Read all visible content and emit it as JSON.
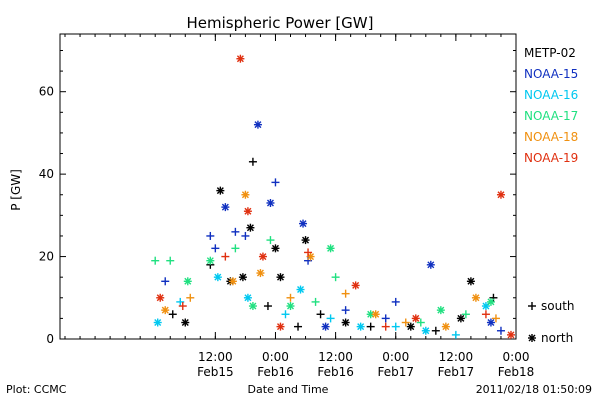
{
  "chart_data": {
    "type": "scatter",
    "title": "Hemispheric Power [GW]",
    "ylabel": "P [GW]",
    "xlabel": "Date and Time",
    "ylim": [
      0,
      74
    ],
    "yticks": [
      0,
      20,
      40,
      60
    ],
    "xlim": [
      "2011-02-14 05:00",
      "2011-02-18 00:00"
    ],
    "xticks": [
      {
        "x": "2011-02-15 12:00",
        "time": "12:00",
        "date": "Feb15"
      },
      {
        "x": "2011-02-16 00:00",
        "time": "0:00",
        "date": "Feb16"
      },
      {
        "x": "2011-02-16 12:00",
        "time": "12:00",
        "date": "Feb16"
      },
      {
        "x": "2011-02-17 00:00",
        "time": "0:00",
        "date": "Feb17"
      },
      {
        "x": "2011-02-17 12:00",
        "time": "12:00",
        "date": "Feb17"
      },
      {
        "x": "2011-02-18 00:00",
        "time": "0:00",
        "date": "Feb18"
      }
    ],
    "legend_position": "right",
    "series": [
      {
        "name": "METP-02",
        "color": "#000000",
        "points": [
          [
            "2011-02-15 03:30",
            6,
            "S"
          ],
          [
            "2011-02-15 06:00",
            4,
            "N"
          ],
          [
            "2011-02-15 11:00",
            18,
            "S"
          ],
          [
            "2011-02-15 13:00",
            36,
            "N"
          ],
          [
            "2011-02-15 15:00",
            14,
            "N"
          ],
          [
            "2011-02-15 17:30",
            15,
            "N"
          ],
          [
            "2011-02-15 19:30",
            43,
            "S"
          ],
          [
            "2011-02-15 19:00",
            27,
            "N"
          ],
          [
            "2011-02-15 22:30",
            8,
            "S"
          ],
          [
            "2011-02-16 00:00",
            22,
            "N"
          ],
          [
            "2011-02-16 01:00",
            15,
            "N"
          ],
          [
            "2011-02-16 04:30",
            3,
            "S"
          ],
          [
            "2011-02-16 06:00",
            24,
            "N"
          ],
          [
            "2011-02-16 09:00",
            6,
            "S"
          ],
          [
            "2011-02-16 14:00",
            4,
            "N"
          ],
          [
            "2011-02-16 19:00",
            3,
            "S"
          ],
          [
            "2011-02-17 03:00",
            3,
            "N"
          ],
          [
            "2011-02-17 08:00",
            2,
            "S"
          ],
          [
            "2011-02-17 13:00",
            5,
            "N"
          ],
          [
            "2011-02-17 15:00",
            14,
            "N"
          ],
          [
            "2011-02-17 19:30",
            10,
            "S"
          ]
        ]
      },
      {
        "name": "NOAA-15",
        "color": "#1030c0",
        "points": [
          [
            "2011-02-15 02:00",
            14,
            "S"
          ],
          [
            "2011-02-15 11:00",
            25,
            "S"
          ],
          [
            "2011-02-15 12:00",
            22,
            "S"
          ],
          [
            "2011-02-15 14:00",
            32,
            "N"
          ],
          [
            "2011-02-15 16:00",
            26,
            "S"
          ],
          [
            "2011-02-15 18:00",
            25,
            "S"
          ],
          [
            "2011-02-15 20:30",
            52,
            "N"
          ],
          [
            "2011-02-15 23:00",
            33,
            "N"
          ],
          [
            "2011-02-16 00:00",
            38,
            "S"
          ],
          [
            "2011-02-16 05:30",
            28,
            "N"
          ],
          [
            "2011-02-16 06:30",
            19,
            "S"
          ],
          [
            "2011-02-16 10:00",
            3,
            "N"
          ],
          [
            "2011-02-16 14:00",
            7,
            "S"
          ],
          [
            "2011-02-16 22:00",
            5,
            "S"
          ],
          [
            "2011-02-17 00:00",
            9,
            "S"
          ],
          [
            "2011-02-17 07:00",
            18,
            "N"
          ],
          [
            "2011-02-17 19:00",
            4,
            "N"
          ],
          [
            "2011-02-17 21:00",
            2,
            "S"
          ]
        ]
      },
      {
        "name": "NOAA-16",
        "color": "#00c8f0",
        "points": [
          [
            "2011-02-15 00:30",
            4,
            "N"
          ],
          [
            "2011-02-15 05:00",
            9,
            "S"
          ],
          [
            "2011-02-15 12:30",
            15,
            "N"
          ],
          [
            "2011-02-15 18:30",
            10,
            "N"
          ],
          [
            "2011-02-16 02:00",
            6,
            "S"
          ],
          [
            "2011-02-16 05:00",
            12,
            "N"
          ],
          [
            "2011-02-16 11:00",
            5,
            "S"
          ],
          [
            "2011-02-16 17:00",
            3,
            "N"
          ],
          [
            "2011-02-17 00:00",
            3,
            "S"
          ],
          [
            "2011-02-17 06:00",
            2,
            "N"
          ],
          [
            "2011-02-17 12:00",
            1,
            "S"
          ],
          [
            "2011-02-17 18:00",
            8,
            "N"
          ]
        ]
      },
      {
        "name": "NOAA-17",
        "color": "#20e080",
        "points": [
          [
            "2011-02-15 00:00",
            19,
            "S"
          ],
          [
            "2011-02-15 03:00",
            19,
            "S"
          ],
          [
            "2011-02-15 06:30",
            14,
            "N"
          ],
          [
            "2011-02-15 11:00",
            19,
            "N"
          ],
          [
            "2011-02-15 16:00",
            22,
            "S"
          ],
          [
            "2011-02-15 19:30",
            8,
            "N"
          ],
          [
            "2011-02-15 23:00",
            24,
            "S"
          ],
          [
            "2011-02-16 03:00",
            8,
            "N"
          ],
          [
            "2011-02-16 08:00",
            9,
            "S"
          ],
          [
            "2011-02-16 11:00",
            22,
            "N"
          ],
          [
            "2011-02-16 12:00",
            15,
            "S"
          ],
          [
            "2011-02-16 19:00",
            6,
            "N"
          ],
          [
            "2011-02-17 05:00",
            4,
            "S"
          ],
          [
            "2011-02-17 09:00",
            7,
            "N"
          ],
          [
            "2011-02-17 14:00",
            6,
            "S"
          ],
          [
            "2011-02-17 19:00",
            9,
            "N"
          ]
        ]
      },
      {
        "name": "NOAA-18",
        "color": "#f09010",
        "points": [
          [
            "2011-02-15 02:00",
            7,
            "N"
          ],
          [
            "2011-02-15 07:00",
            10,
            "S"
          ],
          [
            "2011-02-15 15:30",
            14,
            "N"
          ],
          [
            "2011-02-15 18:00",
            35,
            "N"
          ],
          [
            "2011-02-15 21:00",
            16,
            "N"
          ],
          [
            "2011-02-16 03:00",
            10,
            "S"
          ],
          [
            "2011-02-16 07:00",
            20,
            "N"
          ],
          [
            "2011-02-16 14:00",
            11,
            "S"
          ],
          [
            "2011-02-16 20:00",
            6,
            "N"
          ],
          [
            "2011-02-17 02:00",
            4,
            "S"
          ],
          [
            "2011-02-17 10:00",
            3,
            "N"
          ],
          [
            "2011-02-17 16:00",
            10,
            "N"
          ],
          [
            "2011-02-17 20:00",
            5,
            "S"
          ]
        ]
      },
      {
        "name": "NOAA-19",
        "color": "#e03010",
        "points": [
          [
            "2011-02-15 01:00",
            10,
            "N"
          ],
          [
            "2011-02-15 05:30",
            8,
            "S"
          ],
          [
            "2011-02-15 14:00",
            20,
            "S"
          ],
          [
            "2011-02-15 17:00",
            68,
            "N"
          ],
          [
            "2011-02-15 18:30",
            31,
            "N"
          ],
          [
            "2011-02-15 21:30",
            20,
            "N"
          ],
          [
            "2011-02-16 01:00",
            3,
            "N"
          ],
          [
            "2011-02-16 06:30",
            21,
            "S"
          ],
          [
            "2011-02-16 16:00",
            13,
            "N"
          ],
          [
            "2011-02-16 22:00",
            3,
            "S"
          ],
          [
            "2011-02-17 04:00",
            5,
            "N"
          ],
          [
            "2011-02-17 18:00",
            6,
            "S"
          ],
          [
            "2011-02-17 21:00",
            35,
            "N"
          ],
          [
            "2011-02-17 23:00",
            1,
            "N"
          ]
        ]
      }
    ],
    "marker_legend": {
      "south_symbol": "+",
      "south_label": "south",
      "north_symbol": "*",
      "north_label": "north"
    }
  },
  "footer": {
    "plot_label": "Plot: CCMC",
    "timestamp": "2011/02/18 01:50:09"
  }
}
